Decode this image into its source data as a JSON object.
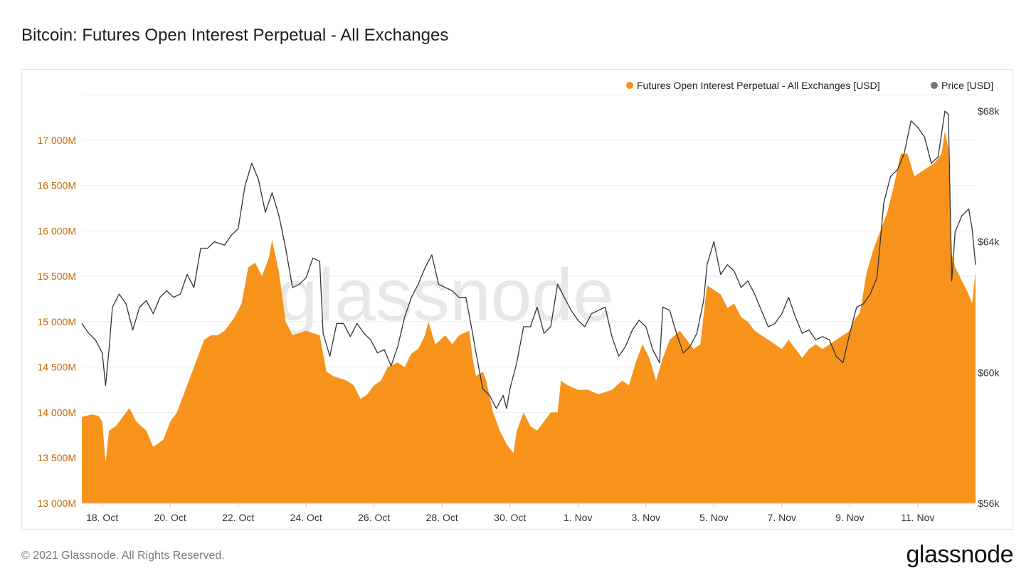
{
  "page": {
    "title": "Bitcoin: Futures Open Interest Perpetual - All Exchanges",
    "copyright": "© 2021 Glassnode. All Rights Reserved.",
    "logo_text": "glassnode",
    "watermark_text": "glassnode"
  },
  "colors": {
    "area": "#f7931a",
    "price_line": "#333333",
    "left_axis_text": "#c06a00",
    "right_axis_text": "#333333",
    "grid": "#ececec",
    "legend_price_dot": "#777777",
    "watermark": "#e8e8e8"
  },
  "chart_data": {
    "type": "area",
    "title": "Bitcoin: Futures Open Interest Perpetual - All Exchanges",
    "xlabel": "",
    "legend_position": "top-right",
    "grid": true,
    "x_ticks": [
      "18. Oct",
      "20. Oct",
      "22. Oct",
      "24. Oct",
      "26. Oct",
      "28. Oct",
      "30. Oct",
      "1. Nov",
      "3. Nov",
      "5. Nov",
      "7. Nov",
      "9. Nov",
      "11. Nov"
    ],
    "y_left": {
      "label": "",
      "ylim": [
        13000,
        17500
      ],
      "ticks": [
        13000,
        13500,
        14000,
        14500,
        15000,
        15500,
        16000,
        16500,
        17000
      ],
      "tick_labels": [
        "13 000M",
        "13 500M",
        "14 000M",
        "14 500M",
        "15 000M",
        "15 500M",
        "16 000M",
        "16 500M",
        "17 000M"
      ]
    },
    "y_right": {
      "label": "",
      "ylim": [
        56000,
        68500
      ],
      "ticks": [
        56000,
        60000,
        64000,
        68000
      ],
      "tick_labels": [
        "$56k",
        "$60k",
        "$64k",
        "$68k"
      ]
    },
    "x_range_days": [
      -0.6,
      25.7
    ],
    "series": [
      {
        "name": "Futures Open Interest Perpetual - All Exchanges [USD]",
        "axis": "left",
        "kind": "area",
        "points": [
          [
            -0.6,
            13950
          ],
          [
            -0.3,
            13980
          ],
          [
            -0.1,
            13960
          ],
          [
            0.0,
            13900
          ],
          [
            0.1,
            13450
          ],
          [
            0.2,
            13800
          ],
          [
            0.4,
            13850
          ],
          [
            0.6,
            13950
          ],
          [
            0.8,
            14050
          ],
          [
            1.0,
            13900
          ],
          [
            1.3,
            13800
          ],
          [
            1.5,
            13620
          ],
          [
            1.8,
            13700
          ],
          [
            2.0,
            13900
          ],
          [
            2.2,
            14000
          ],
          [
            2.4,
            14200
          ],
          [
            2.6,
            14400
          ],
          [
            2.8,
            14600
          ],
          [
            3.0,
            14800
          ],
          [
            3.2,
            14850
          ],
          [
            3.4,
            14850
          ],
          [
            3.6,
            14900
          ],
          [
            3.9,
            15050
          ],
          [
            4.1,
            15200
          ],
          [
            4.3,
            15600
          ],
          [
            4.5,
            15650
          ],
          [
            4.7,
            15500
          ],
          [
            4.9,
            15700
          ],
          [
            5.0,
            15900
          ],
          [
            5.2,
            15550
          ],
          [
            5.4,
            15000
          ],
          [
            5.6,
            14850
          ],
          [
            6.0,
            14900
          ],
          [
            6.4,
            14850
          ],
          [
            6.6,
            14450
          ],
          [
            6.8,
            14400
          ],
          [
            7.2,
            14350
          ],
          [
            7.4,
            14300
          ],
          [
            7.6,
            14150
          ],
          [
            7.8,
            14200
          ],
          [
            8.0,
            14300
          ],
          [
            8.2,
            14350
          ],
          [
            8.4,
            14500
          ],
          [
            8.7,
            14550
          ],
          [
            8.9,
            14500
          ],
          [
            9.1,
            14650
          ],
          [
            9.3,
            14700
          ],
          [
            9.5,
            14850
          ],
          [
            9.6,
            15000
          ],
          [
            9.8,
            14750
          ],
          [
            10.1,
            14850
          ],
          [
            10.3,
            14750
          ],
          [
            10.5,
            14850
          ],
          [
            10.8,
            14900
          ],
          [
            10.9,
            14600
          ],
          [
            11.0,
            14400
          ],
          [
            11.2,
            14450
          ],
          [
            11.3,
            14350
          ],
          [
            11.5,
            14000
          ],
          [
            11.7,
            13800
          ],
          [
            11.9,
            13650
          ],
          [
            12.1,
            13550
          ],
          [
            12.2,
            13800
          ],
          [
            12.4,
            14000
          ],
          [
            12.6,
            13850
          ],
          [
            12.8,
            13800
          ],
          [
            13.0,
            13900
          ],
          [
            13.2,
            14000
          ],
          [
            13.4,
            14000
          ],
          [
            13.5,
            14350
          ],
          [
            13.7,
            14300
          ],
          [
            14.0,
            14250
          ],
          [
            14.3,
            14250
          ],
          [
            14.6,
            14200
          ],
          [
            15.0,
            14250
          ],
          [
            15.3,
            14350
          ],
          [
            15.5,
            14300
          ],
          [
            15.7,
            14550
          ],
          [
            15.9,
            14750
          ],
          [
            16.1,
            14600
          ],
          [
            16.3,
            14350
          ],
          [
            16.5,
            14600
          ],
          [
            16.7,
            14800
          ],
          [
            17.0,
            14900
          ],
          [
            17.2,
            14800
          ],
          [
            17.4,
            14700
          ],
          [
            17.6,
            14750
          ],
          [
            17.8,
            15400
          ],
          [
            18.0,
            15350
          ],
          [
            18.2,
            15300
          ],
          [
            18.4,
            15150
          ],
          [
            18.6,
            15200
          ],
          [
            18.8,
            15050
          ],
          [
            19.0,
            15000
          ],
          [
            19.2,
            14900
          ],
          [
            19.4,
            14850
          ],
          [
            19.6,
            14800
          ],
          [
            19.8,
            14750
          ],
          [
            20.0,
            14700
          ],
          [
            20.2,
            14800
          ],
          [
            20.4,
            14700
          ],
          [
            20.6,
            14600
          ],
          [
            20.8,
            14700
          ],
          [
            21.0,
            14750
          ],
          [
            21.2,
            14700
          ],
          [
            21.4,
            14750
          ],
          [
            21.6,
            14800
          ],
          [
            21.8,
            14850
          ],
          [
            22.0,
            14900
          ],
          [
            22.1,
            15000
          ],
          [
            22.3,
            15100
          ],
          [
            22.5,
            15550
          ],
          [
            22.7,
            15800
          ],
          [
            22.9,
            16000
          ],
          [
            23.1,
            16200
          ],
          [
            23.3,
            16500
          ],
          [
            23.5,
            16850
          ],
          [
            23.7,
            16850
          ],
          [
            23.9,
            16600
          ],
          [
            24.1,
            16650
          ],
          [
            24.3,
            16700
          ],
          [
            24.5,
            16750
          ],
          [
            24.7,
            16850
          ],
          [
            24.8,
            17100
          ],
          [
            24.9,
            16900
          ],
          [
            25.0,
            15750
          ],
          [
            25.1,
            15600
          ],
          [
            25.3,
            15450
          ],
          [
            25.5,
            15300
          ],
          [
            25.6,
            15200
          ],
          [
            25.7,
            15550
          ]
        ]
      },
      {
        "name": "Price [USD]",
        "axis": "right",
        "kind": "line",
        "points": [
          [
            -0.6,
            61500
          ],
          [
            -0.4,
            61200
          ],
          [
            -0.2,
            61000
          ],
          [
            0.0,
            60600
          ],
          [
            0.1,
            59600
          ],
          [
            0.2,
            60700
          ],
          [
            0.3,
            62000
          ],
          [
            0.5,
            62400
          ],
          [
            0.7,
            62100
          ],
          [
            0.9,
            61300
          ],
          [
            1.1,
            62000
          ],
          [
            1.3,
            62200
          ],
          [
            1.5,
            61800
          ],
          [
            1.7,
            62300
          ],
          [
            1.9,
            62500
          ],
          [
            2.1,
            62300
          ],
          [
            2.3,
            62400
          ],
          [
            2.5,
            63000
          ],
          [
            2.7,
            62600
          ],
          [
            2.9,
            63800
          ],
          [
            3.1,
            63800
          ],
          [
            3.3,
            64000
          ],
          [
            3.6,
            63900
          ],
          [
            3.8,
            64200
          ],
          [
            4.0,
            64400
          ],
          [
            4.2,
            65700
          ],
          [
            4.4,
            66400
          ],
          [
            4.6,
            65900
          ],
          [
            4.8,
            64900
          ],
          [
            5.0,
            65500
          ],
          [
            5.2,
            64800
          ],
          [
            5.4,
            63800
          ],
          [
            5.6,
            62600
          ],
          [
            5.8,
            62700
          ],
          [
            6.0,
            62900
          ],
          [
            6.2,
            63500
          ],
          [
            6.4,
            63400
          ],
          [
            6.5,
            61200
          ],
          [
            6.7,
            60500
          ],
          [
            6.9,
            61500
          ],
          [
            7.1,
            61500
          ],
          [
            7.3,
            61100
          ],
          [
            7.5,
            61500
          ],
          [
            7.7,
            61200
          ],
          [
            7.9,
            61000
          ],
          [
            8.1,
            60600
          ],
          [
            8.3,
            60700
          ],
          [
            8.5,
            60200
          ],
          [
            8.7,
            60800
          ],
          [
            8.9,
            61700
          ],
          [
            9.1,
            62300
          ],
          [
            9.3,
            62700
          ],
          [
            9.5,
            63200
          ],
          [
            9.7,
            63600
          ],
          [
            9.9,
            62700
          ],
          [
            10.1,
            62600
          ],
          [
            10.3,
            62500
          ],
          [
            10.5,
            62300
          ],
          [
            10.7,
            62300
          ],
          [
            10.9,
            61200
          ],
          [
            11.0,
            60600
          ],
          [
            11.2,
            59500
          ],
          [
            11.4,
            59300
          ],
          [
            11.6,
            58900
          ],
          [
            11.8,
            59300
          ],
          [
            11.9,
            58900
          ],
          [
            12.0,
            59500
          ],
          [
            12.2,
            60300
          ],
          [
            12.4,
            61400
          ],
          [
            12.6,
            61400
          ],
          [
            12.8,
            62000
          ],
          [
            13.0,
            61200
          ],
          [
            13.2,
            61400
          ],
          [
            13.4,
            62700
          ],
          [
            13.6,
            62300
          ],
          [
            13.8,
            61900
          ],
          [
            14.0,
            61600
          ],
          [
            14.2,
            61400
          ],
          [
            14.4,
            61800
          ],
          [
            14.6,
            61900
          ],
          [
            14.8,
            62000
          ],
          [
            15.0,
            61100
          ],
          [
            15.2,
            60500
          ],
          [
            15.4,
            60800
          ],
          [
            15.6,
            61300
          ],
          [
            15.8,
            61600
          ],
          [
            16.0,
            61400
          ],
          [
            16.2,
            60700
          ],
          [
            16.4,
            60300
          ],
          [
            16.5,
            62000
          ],
          [
            16.7,
            61900
          ],
          [
            16.9,
            61200
          ],
          [
            17.1,
            60600
          ],
          [
            17.3,
            60800
          ],
          [
            17.5,
            61200
          ],
          [
            17.7,
            62200
          ],
          [
            17.8,
            63300
          ],
          [
            18.0,
            64000
          ],
          [
            18.2,
            63000
          ],
          [
            18.4,
            63300
          ],
          [
            18.6,
            63100
          ],
          [
            18.8,
            62600
          ],
          [
            19.0,
            62800
          ],
          [
            19.2,
            62400
          ],
          [
            19.4,
            61900
          ],
          [
            19.6,
            61400
          ],
          [
            19.8,
            61500
          ],
          [
            20.0,
            61800
          ],
          [
            20.2,
            62300
          ],
          [
            20.4,
            61700
          ],
          [
            20.6,
            61200
          ],
          [
            20.8,
            61300
          ],
          [
            21.0,
            61000
          ],
          [
            21.2,
            61100
          ],
          [
            21.4,
            61000
          ],
          [
            21.6,
            60500
          ],
          [
            21.8,
            60300
          ],
          [
            22.0,
            61200
          ],
          [
            22.2,
            62000
          ],
          [
            22.4,
            62100
          ],
          [
            22.6,
            62400
          ],
          [
            22.8,
            62900
          ],
          [
            23.0,
            65200
          ],
          [
            23.2,
            66000
          ],
          [
            23.4,
            66200
          ],
          [
            23.6,
            66700
          ],
          [
            23.8,
            67700
          ],
          [
            24.0,
            67500
          ],
          [
            24.2,
            67200
          ],
          [
            24.4,
            66400
          ],
          [
            24.6,
            66600
          ],
          [
            24.8,
            68000
          ],
          [
            24.9,
            67900
          ],
          [
            25.0,
            62800
          ],
          [
            25.1,
            64300
          ],
          [
            25.3,
            64800
          ],
          [
            25.5,
            65000
          ],
          [
            25.6,
            64400
          ],
          [
            25.7,
            63300
          ]
        ]
      }
    ]
  }
}
